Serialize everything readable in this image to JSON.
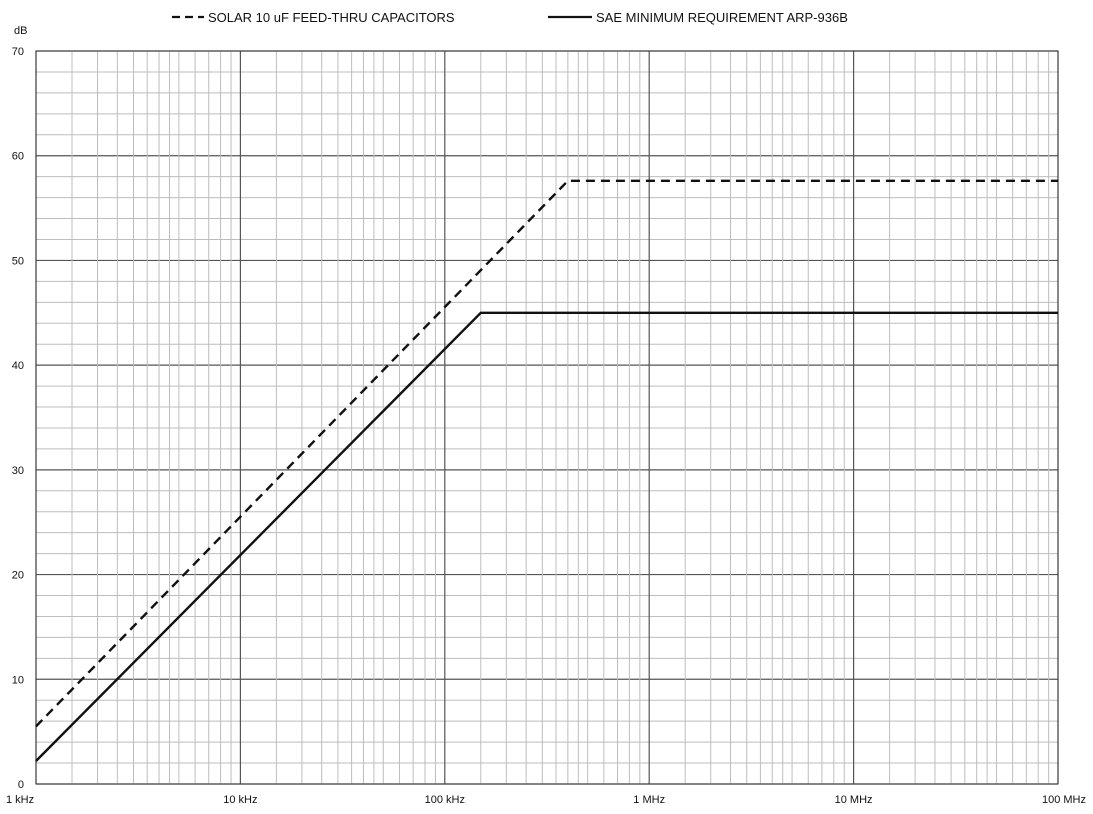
{
  "chart_data": {
    "type": "line",
    "title": "",
    "xlabel": "",
    "ylabel": "dB",
    "x_scale": "log",
    "x_unit": "Hz",
    "xlim": [
      1000,
      100000000
    ],
    "ylim": [
      0,
      70
    ],
    "x_ticks": [
      {
        "value": 1000,
        "label": "1 kHz"
      },
      {
        "value": 10000,
        "label": "10 kHz"
      },
      {
        "value": 100000,
        "label": "100 kHz"
      },
      {
        "value": 1000000,
        "label": "1 MHz"
      },
      {
        "value": 10000000,
        "label": "10 MHz"
      },
      {
        "value": 100000000,
        "label": "100 MHz"
      }
    ],
    "y_ticks": [
      0,
      10,
      20,
      30,
      40,
      50,
      60,
      70
    ],
    "grid": true,
    "legend_position": "top",
    "series": [
      {
        "name": "SOLAR 10 uF FEED-THRU CAPACITORS",
        "style": "dashed",
        "color": "#111111",
        "points": [
          [
            1000,
            5.5
          ],
          [
            400000,
            57.6
          ],
          [
            100000000,
            57.6
          ]
        ]
      },
      {
        "name": "SAE MINIMUM REQUIREMENT ARP-936B",
        "style": "solid",
        "color": "#111111",
        "points": [
          [
            1000,
            2.2
          ],
          [
            150000,
            45.0
          ],
          [
            100000000,
            45.0
          ]
        ]
      }
    ]
  }
}
